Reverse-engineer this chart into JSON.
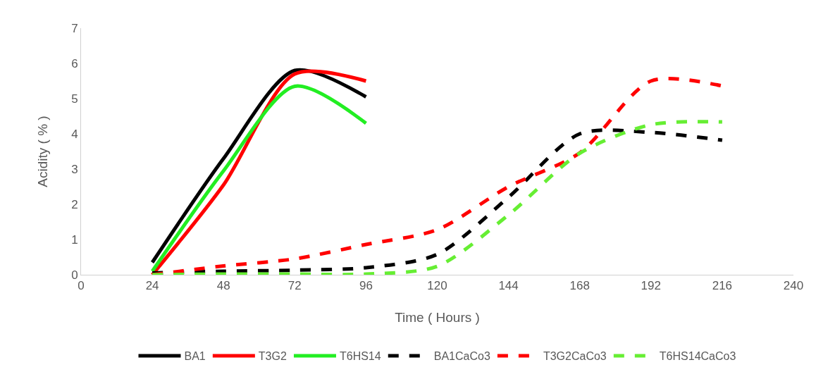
{
  "chart_data": {
    "type": "line",
    "xlabel": "Time ( Hours )",
    "ylabel": "Acidity ( % )",
    "x": [
      24,
      48,
      72,
      96
    ],
    "xlim": [
      0,
      240
    ],
    "xticks": [
      0,
      24,
      48,
      72,
      96,
      120,
      144,
      168,
      192,
      216,
      240
    ],
    "ylim": [
      0,
      7
    ],
    "yticks": [
      0,
      1,
      2,
      3,
      4,
      5,
      6,
      7
    ],
    "grid": false,
    "legend": "bottom",
    "marker": "none",
    "series": [
      {
        "name": "BA1",
        "color": "#000000",
        "line_style": "solid",
        "values": [
          0.35,
          3.3,
          5.8,
          5.05
        ]
      },
      {
        "name": "T3G2",
        "color": "#ff0000",
        "line_style": "solid",
        "values": [
          0,
          2.55,
          5.7,
          5.5
        ]
      },
      {
        "name": "T6HS14",
        "color": "#22ee22",
        "line_style": "solid",
        "values": [
          0.1,
          2.95,
          5.35,
          4.3
        ]
      },
      {
        "name": "BA1CaCo3",
        "color": "#000000",
        "line_style": "dashed",
        "x": [
          24,
          48,
          72,
          96,
          120,
          144,
          168,
          192,
          216
        ],
        "values": [
          0.05,
          0.1,
          0.13,
          0.2,
          0.58,
          2.2,
          4.0,
          4.04,
          3.82
        ]
      },
      {
        "name": "T3G2CaCo3",
        "color": "#ff0000",
        "line_style": "dashed",
        "x": [
          24,
          48,
          72,
          96,
          120,
          144,
          168,
          192,
          216
        ],
        "values": [
          0,
          0.25,
          0.45,
          0.86,
          1.28,
          2.5,
          3.46,
          5.5,
          5.36
        ]
      },
      {
        "name": "T6HS14CaCo3",
        "color": "#66ee33",
        "line_style": "dashed",
        "x": [
          24,
          48,
          72,
          96,
          120,
          144,
          168,
          192,
          216
        ],
        "values": [
          0,
          0.02,
          0.02,
          0.02,
          0.24,
          1.7,
          3.45,
          4.26,
          4.34
        ]
      }
    ]
  }
}
